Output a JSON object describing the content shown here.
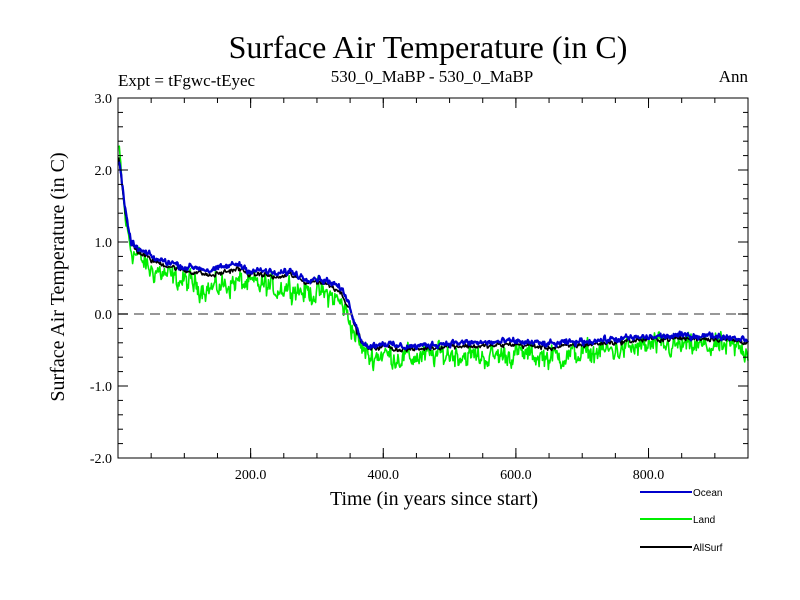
{
  "chart_data": {
    "type": "line",
    "title": "Surface Air Temperature (in C)",
    "subtitle_left": "Expt = tFgwc-tEyec",
    "subtitle_center": "530_0_MaBP - 530_0_MaBP",
    "subtitle_right": "Ann",
    "xlabel": "Time (in years since start)",
    "ylabel": "Surface Air Temperature (in C)",
    "xlim": [
      0,
      950
    ],
    "ylim": [
      -2.0,
      3.0
    ],
    "x_ticks": [
      200,
      400,
      600,
      800
    ],
    "x_tick_labels": [
      "200.0",
      "400.0",
      "600.0",
      "800.0"
    ],
    "y_ticks": [
      -2.0,
      -1.0,
      0.0,
      1.0,
      2.0,
      3.0
    ],
    "y_tick_labels": [
      "-2.0",
      "-1.0",
      "0.0",
      "1.0",
      "2.0",
      "3.0"
    ],
    "reference_line": {
      "y": 0.0,
      "style": "dashed"
    },
    "legend_position": "bottom-right",
    "series": [
      {
        "name": "Ocean",
        "color": "#0000cc",
        "x": [
          0,
          5,
          10,
          15,
          20,
          30,
          40,
          50,
          60,
          80,
          100,
          120,
          140,
          160,
          180,
          200,
          220,
          240,
          260,
          280,
          300,
          320,
          330,
          340,
          350,
          360,
          370,
          380,
          400,
          420,
          450,
          500,
          550,
          600,
          650,
          700,
          750,
          800,
          850,
          900,
          950
        ],
        "y": [
          2.2,
          1.9,
          1.5,
          1.2,
          1.0,
          0.9,
          0.85,
          0.8,
          0.75,
          0.72,
          0.65,
          0.65,
          0.6,
          0.65,
          0.7,
          0.6,
          0.6,
          0.55,
          0.6,
          0.5,
          0.5,
          0.45,
          0.4,
          0.3,
          0.1,
          -0.2,
          -0.4,
          -0.45,
          -0.4,
          -0.45,
          -0.45,
          -0.4,
          -0.4,
          -0.38,
          -0.42,
          -0.38,
          -0.35,
          -0.32,
          -0.3,
          -0.3,
          -0.35
        ]
      },
      {
        "name": "Land",
        "color": "#00ee00",
        "x": [
          0,
          5,
          10,
          15,
          20,
          30,
          40,
          50,
          60,
          80,
          100,
          120,
          140,
          160,
          180,
          200,
          220,
          240,
          260,
          280,
          300,
          320,
          330,
          340,
          350,
          360,
          370,
          380,
          400,
          420,
          450,
          500,
          550,
          600,
          650,
          700,
          750,
          800,
          850,
          900,
          950
        ],
        "y": [
          2.4,
          1.9,
          1.4,
          1.1,
          0.9,
          0.8,
          0.7,
          0.6,
          0.6,
          0.5,
          0.45,
          0.4,
          0.35,
          0.4,
          0.45,
          0.4,
          0.4,
          0.35,
          0.4,
          0.3,
          0.3,
          0.25,
          0.2,
          0.1,
          -0.1,
          -0.35,
          -0.5,
          -0.6,
          -0.55,
          -0.6,
          -0.6,
          -0.55,
          -0.6,
          -0.55,
          -0.6,
          -0.55,
          -0.5,
          -0.45,
          -0.45,
          -0.45,
          -0.5
        ]
      },
      {
        "name": "AllSurf",
        "color": "#000000",
        "x": [
          0,
          5,
          10,
          15,
          20,
          30,
          40,
          50,
          60,
          80,
          100,
          120,
          140,
          160,
          180,
          200,
          220,
          240,
          260,
          280,
          300,
          320,
          330,
          340,
          350,
          360,
          370,
          380,
          400,
          420,
          450,
          500,
          550,
          600,
          650,
          700,
          750,
          800,
          850,
          900,
          950
        ],
        "y": [
          2.25,
          1.9,
          1.48,
          1.17,
          0.97,
          0.87,
          0.81,
          0.75,
          0.71,
          0.66,
          0.6,
          0.58,
          0.53,
          0.58,
          0.63,
          0.55,
          0.55,
          0.5,
          0.55,
          0.45,
          0.45,
          0.4,
          0.35,
          0.25,
          0.05,
          -0.24,
          -0.43,
          -0.49,
          -0.44,
          -0.49,
          -0.49,
          -0.44,
          -0.45,
          -0.42,
          -0.47,
          -0.43,
          -0.39,
          -0.35,
          -0.34,
          -0.34,
          -0.39
        ]
      }
    ]
  }
}
